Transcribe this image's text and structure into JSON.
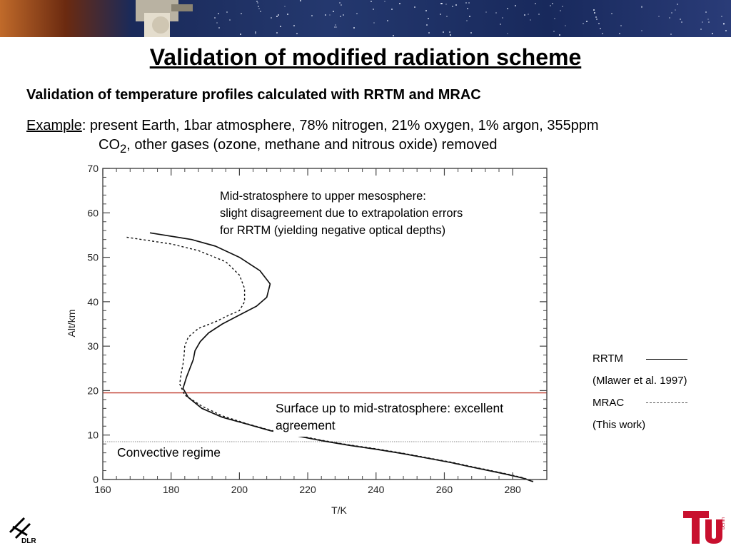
{
  "slide": {
    "title": "Validation of modified radiation scheme",
    "subtitle": "Validation of temperature profiles calculated with RRTM and MRAC",
    "example_label": "Example",
    "example_line1": ": present Earth, 1bar atmosphere, 78% nitrogen, 21% oxygen, 1% argon, 355ppm",
    "example_co": "CO",
    "example_sub": "2",
    "example_line2": ", other gases (ozone, methane and nitrous oxide) removed"
  },
  "legend": {
    "rrtm": "RRTM",
    "rrtm_ref": "(Mlawer et al. 1997)",
    "mrac": "MRAC",
    "mrac_ref": "(This work)"
  },
  "logos": {
    "left": "DLR",
    "right": "berlin"
  },
  "chart_data": {
    "type": "line",
    "xlabel": "T/K",
    "ylabel": "Alt/km",
    "xlim": [
      160,
      290
    ],
    "ylim": [
      0,
      70
    ],
    "xticks": [
      160,
      180,
      200,
      220,
      240,
      260,
      280
    ],
    "yticks": [
      0,
      10,
      20,
      30,
      40,
      50,
      60,
      70
    ],
    "series": [
      {
        "name": "RRTM",
        "style": "solid",
        "x": [
          173.8,
          186,
          193,
          200,
          206,
          209,
          208,
          205,
          200,
          195,
          191,
          188.5,
          187,
          186.5,
          185.5,
          184.5,
          183.5,
          185,
          189,
          195,
          202,
          209,
          217,
          225,
          232,
          240,
          248,
          255,
          262,
          268,
          273,
          278,
          283,
          286
        ],
        "y": [
          55.5,
          54,
          52.5,
          50,
          47,
          44,
          41,
          39,
          37,
          35,
          33,
          31,
          29,
          27,
          25,
          23,
          20.5,
          18.5,
          16,
          14,
          12.5,
          11,
          9.8,
          8.6,
          7.7,
          6.8,
          5.8,
          4.8,
          3.8,
          2.8,
          2,
          1.2,
          0.3,
          -0.5
        ]
      },
      {
        "name": "MRAC",
        "style": "dashed",
        "x": [
          167,
          180,
          188,
          196,
          200,
          201.5,
          201.5,
          200,
          197,
          193,
          188,
          185,
          184,
          183.8,
          183.5,
          183,
          182.5,
          184,
          189,
          195,
          202,
          209,
          217,
          225,
          232,
          240,
          248,
          255,
          262,
          268,
          273,
          278,
          283,
          286
        ],
        "y": [
          54.5,
          53,
          51.5,
          49,
          46,
          43,
          40,
          38,
          37,
          35.5,
          34,
          32,
          30,
          28,
          26,
          24,
          21.5,
          19,
          16.5,
          14.3,
          12.6,
          11.1,
          9.9,
          8.7,
          7.8,
          6.9,
          5.9,
          4.9,
          3.9,
          2.9,
          2.1,
          1.3,
          0.4,
          -0.4
        ]
      }
    ],
    "reference_lines": [
      {
        "y": 19.5,
        "color": "#c0392b",
        "style": "solid"
      },
      {
        "y": 8.5,
        "color": "#888888",
        "style": "dotted"
      }
    ],
    "annotations": [
      {
        "lines": [
          "Mid-stratosphere to upper mesosphere:",
          "slight disagreement due to extrapolation errors",
          "for RRTM (yielding negative optical depths)"
        ]
      },
      {
        "lines": [
          "Surface up to mid-stratosphere: excellent",
          "agreement"
        ]
      },
      {
        "lines": [
          "Convective regime"
        ]
      }
    ]
  }
}
